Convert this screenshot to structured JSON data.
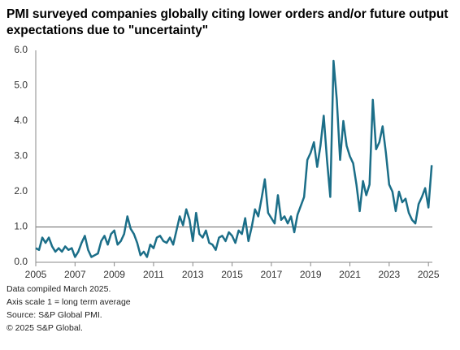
{
  "chart_data": {
    "type": "line",
    "title": [
      "PMI surveyed companies globally citing lower orders and/or future output",
      "expectations due to \"uncertainty\""
    ],
    "notes": [
      "Data compiled March 2025.",
      "Axis scale 1 = long term average",
      "Source: S&P Global PMI.",
      "© 2025 S&P Global."
    ],
    "x": [
      2005,
      2005.1667,
      2005.3333,
      2005.5,
      2005.6667,
      2005.8333,
      2006,
      2006.1667,
      2006.3333,
      2006.5,
      2006.6667,
      2006.8333,
      2007,
      2007.1667,
      2007.3333,
      2007.5,
      2007.6667,
      2007.8333,
      2008,
      2008.1667,
      2008.3333,
      2008.5,
      2008.6667,
      2008.8333,
      2009,
      2009.1667,
      2009.3333,
      2009.5,
      2009.6667,
      2009.8333,
      2010,
      2010.1667,
      2010.3333,
      2010.5,
      2010.6667,
      2010.8333,
      2011,
      2011.1667,
      2011.3333,
      2011.5,
      2011.6667,
      2011.8333,
      2012,
      2012.1667,
      2012.3333,
      2012.5,
      2012.6667,
      2012.8333,
      2013,
      2013.1667,
      2013.3333,
      2013.5,
      2013.6667,
      2013.8333,
      2014,
      2014.1667,
      2014.3333,
      2014.5,
      2014.6667,
      2014.8333,
      2015,
      2015.1667,
      2015.3333,
      2015.5,
      2015.6667,
      2015.8333,
      2016,
      2016.1667,
      2016.3333,
      2016.5,
      2016.6667,
      2016.8333,
      2017,
      2017.1667,
      2017.3333,
      2017.5,
      2017.6667,
      2017.8333,
      2018,
      2018.1667,
      2018.3333,
      2018.5,
      2018.6667,
      2018.8333,
      2019,
      2019.1667,
      2019.3333,
      2019.5,
      2019.6667,
      2019.8333,
      2020,
      2020.1667,
      2020.3333,
      2020.5,
      2020.6667,
      2020.8333,
      2021,
      2021.1667,
      2021.3333,
      2021.5,
      2021.6667,
      2021.8333,
      2022,
      2022.1667,
      2022.3333,
      2022.5,
      2022.6667,
      2022.8333,
      2023,
      2023.1667,
      2023.3333,
      2023.5,
      2023.6667,
      2023.8333,
      2024,
      2024.1667,
      2024.3333,
      2024.5,
      2024.6667,
      2024.8333,
      2025,
      2025.1667
    ],
    "series": [
      {
        "color": "#1b6e88",
        "values": [
          0.4,
          0.35,
          0.7,
          0.55,
          0.7,
          0.45,
          0.3,
          0.4,
          0.3,
          0.45,
          0.35,
          0.4,
          0.15,
          0.3,
          0.55,
          0.75,
          0.35,
          0.15,
          0.2,
          0.25,
          0.6,
          0.75,
          0.5,
          0.8,
          0.9,
          0.5,
          0.6,
          0.8,
          1.3,
          0.95,
          0.8,
          0.55,
          0.2,
          0.3,
          0.15,
          0.5,
          0.4,
          0.7,
          0.75,
          0.6,
          0.55,
          0.7,
          0.5,
          0.9,
          1.3,
          1.05,
          1.5,
          1.2,
          0.6,
          1.4,
          0.8,
          0.7,
          0.9,
          0.55,
          0.5,
          0.35,
          0.7,
          0.75,
          0.6,
          0.85,
          0.75,
          0.55,
          0.9,
          0.8,
          1.25,
          0.6,
          1.0,
          1.5,
          1.3,
          1.8,
          2.35,
          1.4,
          1.25,
          1.1,
          1.9,
          1.2,
          1.3,
          1.1,
          1.3,
          0.85,
          1.35,
          1.6,
          1.85,
          2.9,
          3.1,
          3.4,
          2.7,
          3.3,
          4.15,
          2.9,
          1.85,
          5.7,
          4.6,
          2.9,
          4.0,
          3.3,
          3.0,
          2.8,
          2.2,
          1.45,
          2.3,
          1.9,
          2.2,
          4.6,
          3.2,
          3.4,
          3.85,
          3.1,
          2.2,
          2.0,
          1.45,
          2.0,
          1.7,
          1.8,
          1.4,
          1.2,
          1.1,
          1.65,
          1.85,
          2.1,
          1.55,
          2.75
        ]
      }
    ],
    "xlim": [
      2005,
      2025.2
    ],
    "xticks": [
      2005,
      2007,
      2009,
      2011,
      2013,
      2015,
      2017,
      2019,
      2021,
      2023,
      2025
    ],
    "ylim": [
      0,
      6
    ],
    "yticks": [
      {
        "value": 0,
        "label": "0.0"
      },
      {
        "value": 1,
        "label": "1.0"
      },
      {
        "value": 2,
        "label": "2.0"
      },
      {
        "value": 3,
        "label": "3.0"
      },
      {
        "value": 4,
        "label": "4.0"
      },
      {
        "value": 5,
        "label": "5.0"
      },
      {
        "value": 6,
        "label": "6.0"
      }
    ],
    "reference_line": 1,
    "grid": false
  }
}
